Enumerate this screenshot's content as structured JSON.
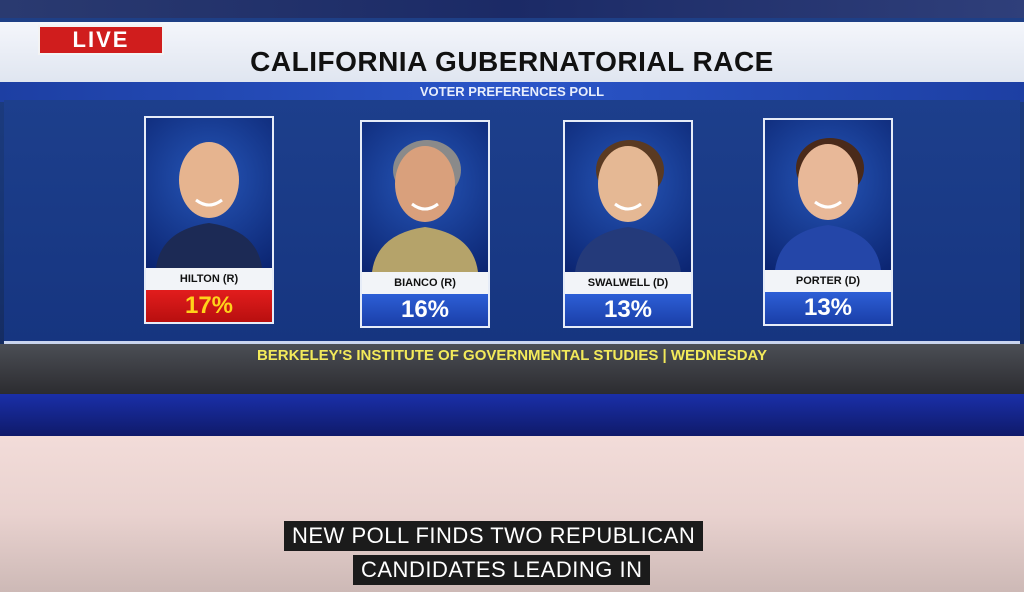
{
  "live_label": "LIVE",
  "title": "CALIFORNIA GUBERNATORIAL RACE",
  "subtitle": "VOTER PREFERENCES POLL",
  "candidates": [
    {
      "name": "HILTON (R)",
      "percent": "17%",
      "leading": true,
      "party_color": "#d01d1d"
    },
    {
      "name": "BIANCO (R)",
      "percent": "16%",
      "leading": false
    },
    {
      "name": "SWALWELL (D)",
      "percent": "13%",
      "leading": false
    },
    {
      "name": "PORTER (D)",
      "percent": "13%",
      "leading": false
    }
  ],
  "source": "BERKELEY'S INSTITUTE OF GOVERNMENTAL STUDIES | WEDNESDAY",
  "captions": [
    "NEW POLL FINDS TWO REPUBLICAN",
    "CANDIDATES LEADING IN"
  ]
}
